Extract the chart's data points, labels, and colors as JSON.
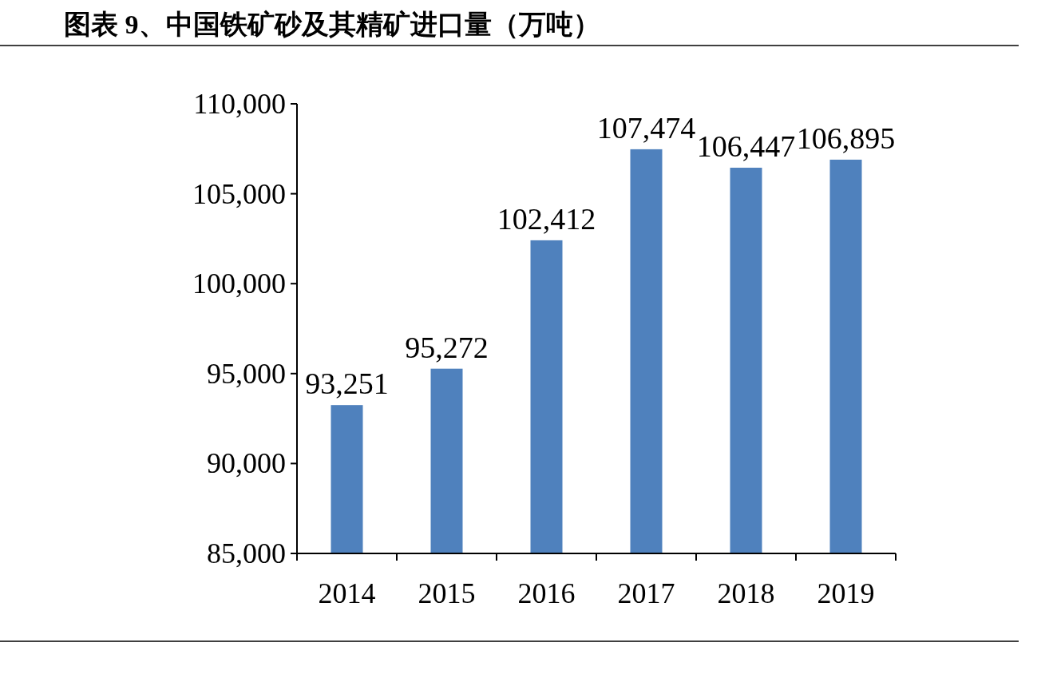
{
  "chart_data": {
    "type": "bar",
    "title": "图表 9、中国铁矿砂及其精矿进口量（万吨）",
    "categories": [
      "2014",
      "2015",
      "2016",
      "2017",
      "2018",
      "2019"
    ],
    "values": [
      93251,
      95272,
      102412,
      107474,
      106447,
      106895
    ],
    "color": "#4f81bd",
    "ylim": [
      85000,
      110000
    ],
    "yticks": [
      {
        "value": 85000,
        "label": "85,000"
      },
      {
        "value": 90000,
        "label": "90,000"
      },
      {
        "value": 95000,
        "label": "95,000"
      },
      {
        "value": 100000,
        "label": "100,000"
      },
      {
        "value": 105000,
        "label": "105,000"
      },
      {
        "value": 110000,
        "label": "110,000"
      }
    ],
    "value_labels": [
      "93,251",
      "95,272",
      "102,412",
      "107,474",
      "106,447",
      "106,895"
    ]
  }
}
